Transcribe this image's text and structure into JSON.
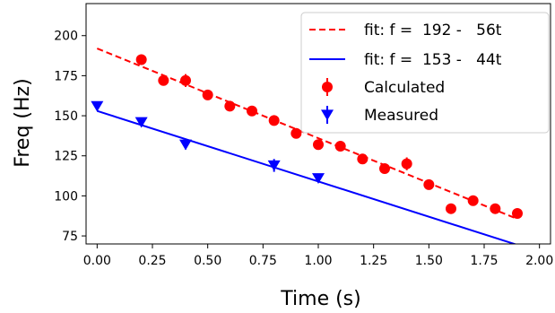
{
  "chart_data": {
    "type": "scatter",
    "xlabel": "Time (s)",
    "ylabel": "Freq (Hz)",
    "xlim": [
      -0.05,
      2.05
    ],
    "ylim": [
      70,
      220
    ],
    "xticks": [
      0.0,
      0.25,
      0.5,
      0.75,
      1.0,
      1.25,
      1.5,
      1.75,
      2.0
    ],
    "xtick_labels": [
      "0.00",
      "0.25",
      "0.50",
      "0.75",
      "1.00",
      "1.25",
      "1.50",
      "1.75",
      "2.00"
    ],
    "yticks": [
      75,
      100,
      125,
      150,
      175,
      200
    ],
    "ytick_labels": [
      "75",
      "100",
      "125",
      "150",
      "175",
      "200"
    ],
    "grid": false,
    "legend_position": "top-right",
    "fits": [
      {
        "name": "fit: f =  192 -   56t",
        "intercept": 192,
        "slope": -56,
        "x_range": [
          0.0,
          1.9
        ],
        "color": "#ff0000",
        "style": "dashed"
      },
      {
        "name": "fit: f =  153 -   44t",
        "intercept": 153,
        "slope": -44,
        "x_range": [
          0.0,
          1.9
        ],
        "color": "#0000ff",
        "style": "solid"
      }
    ],
    "series": [
      {
        "name": "Calculated",
        "marker": "circle",
        "color": "#ff0000",
        "x": [
          0.2,
          0.3,
          0.4,
          0.5,
          0.6,
          0.7,
          0.8,
          0.9,
          1.0,
          1.1,
          1.2,
          1.3,
          1.4,
          1.5,
          1.6,
          1.7,
          1.8,
          1.9
        ],
        "y": [
          185,
          172,
          172,
          163,
          156,
          153,
          147,
          139,
          132,
          131,
          123,
          117,
          120,
          107,
          92,
          97,
          92,
          89
        ],
        "err": [
          2,
          2,
          4,
          2,
          2,
          2,
          2,
          2,
          3,
          2,
          2,
          2,
          4,
          2,
          1,
          2,
          2,
          2
        ]
      },
      {
        "name": "Measured",
        "marker": "triangle-down",
        "color": "#0000ff",
        "x": [
          0.0,
          0.2,
          0.4,
          0.8,
          1.0
        ],
        "y": [
          156,
          146,
          132,
          119,
          111
        ],
        "err": [
          2,
          2,
          3,
          4,
          2
        ]
      }
    ]
  }
}
